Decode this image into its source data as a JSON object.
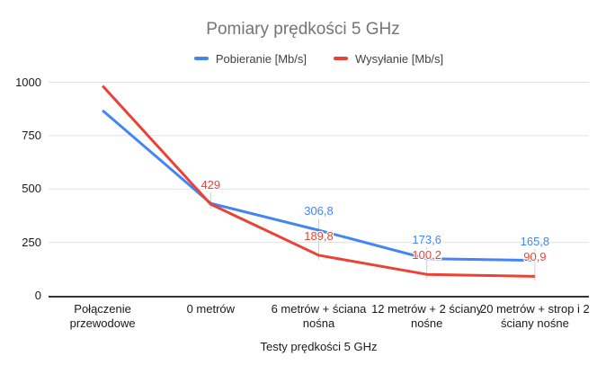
{
  "chart_data": {
    "type": "line",
    "title": "Pomiary prędkości 5 GHz",
    "xlabel": "Testy prędkości 5 GHz",
    "ylabel": "",
    "ylim": [
      0,
      1000
    ],
    "yticks": [
      0,
      250,
      500,
      750,
      1000
    ],
    "grid": true,
    "legend_position": "top",
    "categories": [
      "Połączenie przewodowe",
      "0 metrów",
      "6 metrów + ściana nośna",
      "12 metrów + 2 ściany nośne",
      "20 metrów + strop i 2 ściany nośne"
    ],
    "series": [
      {
        "name": "Pobieranie [Mb/s]",
        "color": "#4285F4",
        "values": [
          868,
          433,
          306.8,
          173.6,
          165.8
        ],
        "labels": [
          null,
          null,
          "306,8",
          "173,6",
          "165,8"
        ]
      },
      {
        "name": "Wysyłanie [Mb/s]",
        "color": "#EA4335",
        "values": [
          983,
          429,
          189.8,
          100.2,
          90.9
        ],
        "labels": [
          null,
          "429",
          "189,8",
          "100,2",
          "90,9"
        ]
      }
    ]
  },
  "colors": {
    "title_text": "#757575",
    "axis_text": "#1a1a1a",
    "legend_text": "#424242",
    "gridline": "#e0e0e0",
    "axis_line": "#333333",
    "annotation_stem": "#cfcfcf",
    "background": "#ffffff"
  }
}
